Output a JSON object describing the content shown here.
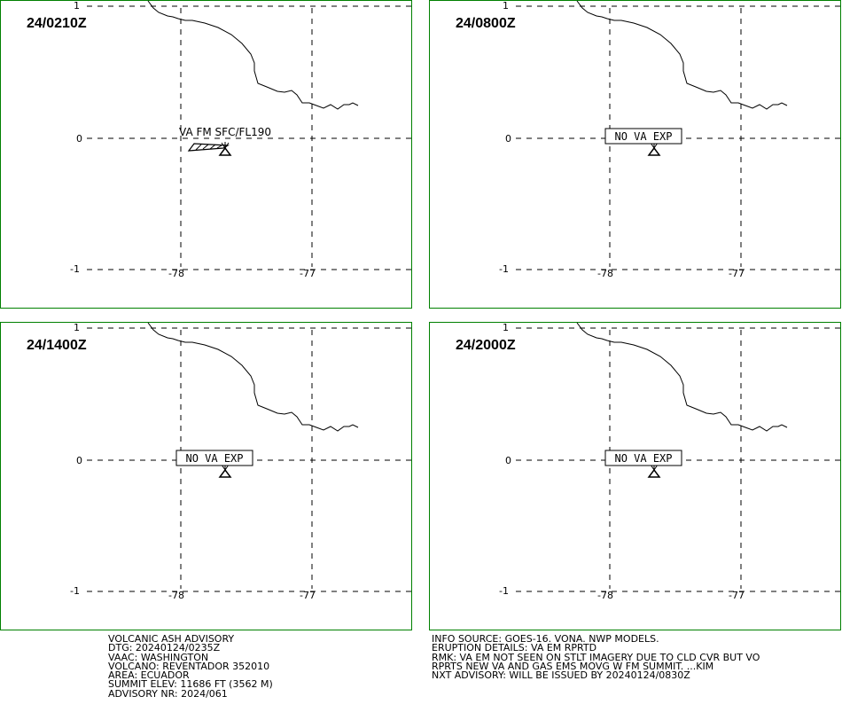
{
  "colors": {
    "panel_border": "#008000",
    "lines": "#000000",
    "background": "#ffffff"
  },
  "ticks": {
    "lat_top": "1",
    "lat_mid": "0",
    "lat_bot": "-1",
    "lon_left": "-78",
    "lon_right": "-77"
  },
  "panels": [
    {
      "time": "24/0210Z",
      "label": "VA FM SFC/FL190",
      "label_boxed": false,
      "ash_polygon": true
    },
    {
      "time": "24/0800Z",
      "label": "NO VA EXP",
      "label_boxed": true,
      "ash_polygon": false
    },
    {
      "time": "24/1400Z",
      "label": "NO VA EXP",
      "label_boxed": true,
      "ash_polygon": false
    },
    {
      "time": "24/2000Z",
      "label": "NO VA EXP",
      "label_boxed": true,
      "ash_polygon": false
    }
  ],
  "advisory": {
    "left": [
      "VOLCANIC ASH ADVISORY",
      "DTG: 20240124/0235Z",
      "VAAC: WASHINGTON",
      "VOLCANO: REVENTADOR 352010",
      "AREA: ECUADOR",
      "SUMMIT ELEV: 11686 FT (3562 M)",
      "ADVISORY NR: 2024/061"
    ],
    "right": [
      "INFO SOURCE: GOES-16. VONA. NWP MODELS.",
      "ERUPTION DETAILS: VA EM RPRTD",
      "RMK: VA EM NOT SEEN ON STLT IMAGERY DUE TO CLD CVR BUT VO",
      "RPRTS NEW VA AND GAS EMS MOVG W FM SUMMIT. ...KIM",
      "NXT ADVISORY: WILL BE ISSUED BY 20240124/0830Z"
    ]
  }
}
